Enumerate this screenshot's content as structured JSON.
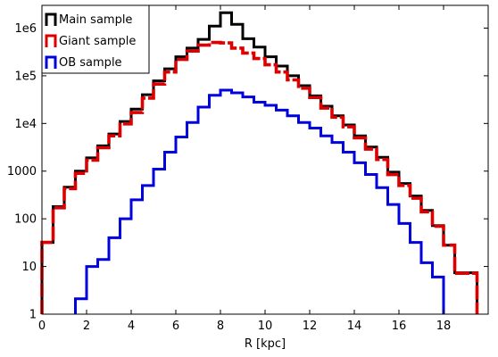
{
  "chart_data": {
    "type": "line",
    "title": "",
    "xlabel": "R [kpc]",
    "ylabel": "",
    "xlim": [
      0,
      20
    ],
    "ylim": [
      1,
      3000000
    ],
    "y_scale": "log",
    "bin_width": 0.5,
    "x_ticks": [
      0,
      2,
      4,
      6,
      8,
      10,
      12,
      14,
      16,
      18
    ],
    "x_tick_labels": [
      "0",
      "2",
      "4",
      "6",
      "8",
      "10",
      "12",
      "14",
      "16",
      "18"
    ],
    "y_ticks": [
      1,
      10,
      100,
      1000,
      10000,
      100000,
      1000000
    ],
    "y_tick_labels": [
      "1",
      "10",
      "100",
      "1000",
      "1e4",
      "1e5",
      "1e6"
    ],
    "legend_position": "top-left",
    "bin_starts": [
      0,
      0.5,
      1,
      1.5,
      2,
      2.5,
      3,
      3.5,
      4,
      4.5,
      5,
      5.5,
      6,
      6.5,
      7,
      7.5,
      8,
      8.5,
      9,
      9.5,
      10,
      10.5,
      11,
      11.5,
      12,
      12.5,
      13,
      13.5,
      14,
      14.5,
      15,
      15.5,
      16,
      16.5,
      17,
      17.5,
      18,
      18.5,
      19
    ],
    "series": [
      {
        "name": "Main sample",
        "color": "#000000",
        "values": [
          32,
          180,
          460,
          1000,
          1900,
          3400,
          6000,
          11000,
          20000,
          40000,
          78000,
          140000,
          250000,
          380000,
          580000,
          1100000,
          2100000,
          1200000,
          600000,
          400000,
          250000,
          160000,
          100000,
          62000,
          38000,
          23000,
          14500,
          9300,
          5500,
          3200,
          1950,
          950,
          550,
          300,
          150,
          72,
          28,
          7.4,
          7.4
        ],
        "dashed": false
      },
      {
        "name": "Giant sample",
        "color": "#dd0000",
        "values": [
          32,
          170,
          430,
          900,
          1700,
          3100,
          5500,
          9800,
          17000,
          34000,
          67000,
          120000,
          220000,
          330000,
          440000,
          500000,
          490000,
          380000,
          300000,
          230000,
          170000,
          120000,
          82000,
          55000,
          35000,
          21000,
          13500,
          8500,
          5000,
          2900,
          1750,
          850,
          500,
          270,
          140,
          70,
          28,
          7.2,
          7.2
        ],
        "dashed": true
      },
      {
        "name": "OB sample",
        "color": "#0000dd",
        "values": [
          null,
          null,
          null,
          2.1,
          10,
          14,
          40,
          100,
          250,
          500,
          1100,
          2500,
          5200,
          10500,
          22000,
          39000,
          50000,
          44000,
          36000,
          28000,
          24000,
          19000,
          14500,
          10500,
          8000,
          5500,
          4000,
          2500,
          1500,
          850,
          450,
          200,
          80,
          32,
          12,
          6,
          null,
          null,
          null
        ],
        "dashed": false,
        "gaps_after_bins": [
          3.5,
          16.5
        ]
      }
    ]
  }
}
